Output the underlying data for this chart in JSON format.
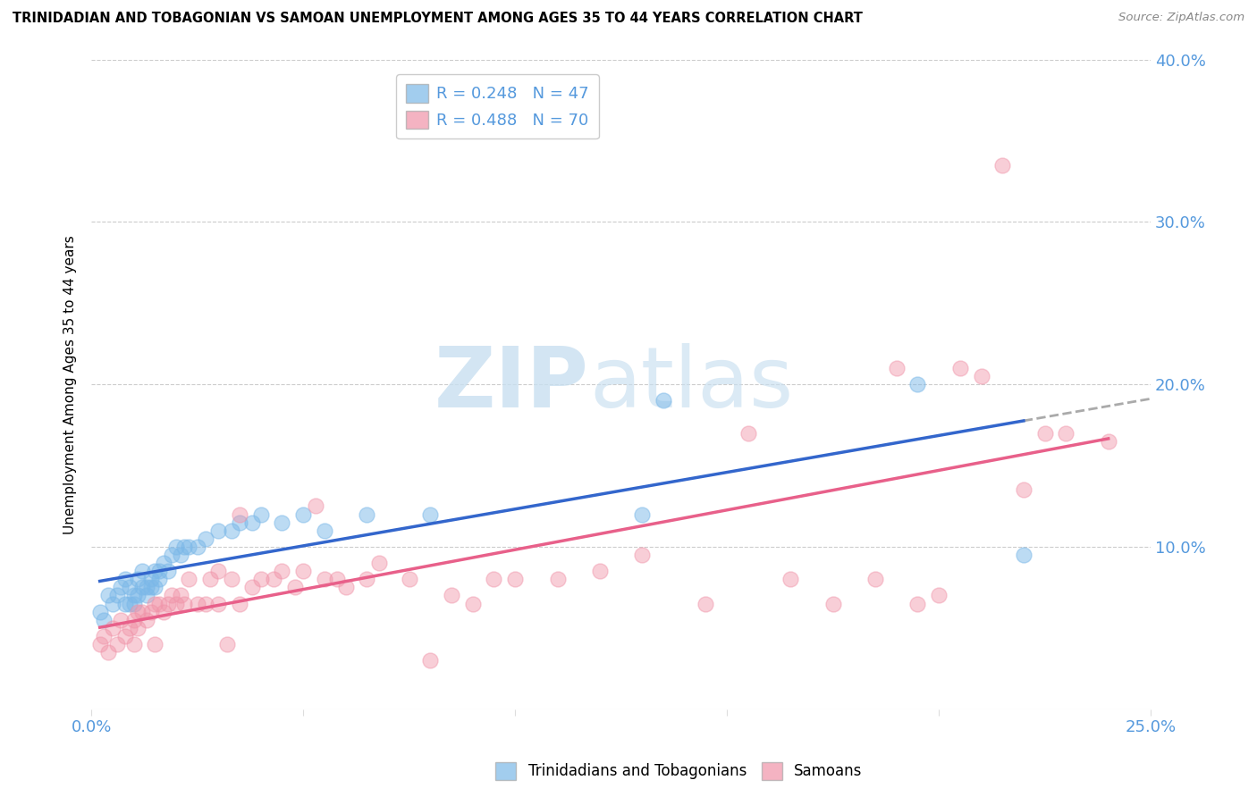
{
  "title": "TRINIDADIAN AND TOBAGONIAN VS SAMOAN UNEMPLOYMENT AMONG AGES 35 TO 44 YEARS CORRELATION CHART",
  "source": "Source: ZipAtlas.com",
  "ylabel": "Unemployment Among Ages 35 to 44 years",
  "xlim": [
    0.0,
    0.25
  ],
  "ylim": [
    0.0,
    0.4
  ],
  "xticks": [
    0.0,
    0.05,
    0.1,
    0.15,
    0.2,
    0.25
  ],
  "yticks": [
    0.0,
    0.1,
    0.2,
    0.3,
    0.4
  ],
  "trinidadian_color": "#7bb8e8",
  "samoan_color": "#f093a8",
  "trinidadian_line_color": "#3366cc",
  "samoan_line_color": "#e8608a",
  "trinidadian_line_color_ext": "#aaaaaa",
  "watermark_zip": "ZIP",
  "watermark_atlas": "atlas",
  "legend_r1": "R = 0.248",
  "legend_n1": "N = 47",
  "legend_r2": "R = 0.488",
  "legend_n2": "N = 70",
  "trinidadian_x": [
    0.002,
    0.003,
    0.004,
    0.005,
    0.006,
    0.007,
    0.008,
    0.008,
    0.009,
    0.009,
    0.01,
    0.01,
    0.011,
    0.011,
    0.012,
    0.012,
    0.013,
    0.013,
    0.014,
    0.014,
    0.015,
    0.015,
    0.016,
    0.016,
    0.017,
    0.018,
    0.019,
    0.02,
    0.021,
    0.022,
    0.023,
    0.025,
    0.027,
    0.03,
    0.033,
    0.035,
    0.038,
    0.04,
    0.045,
    0.05,
    0.055,
    0.065,
    0.08,
    0.13,
    0.135,
    0.195,
    0.22
  ],
  "trinidadian_y": [
    0.06,
    0.055,
    0.07,
    0.065,
    0.07,
    0.075,
    0.065,
    0.08,
    0.065,
    0.075,
    0.07,
    0.065,
    0.08,
    0.07,
    0.075,
    0.085,
    0.075,
    0.07,
    0.08,
    0.075,
    0.085,
    0.075,
    0.085,
    0.08,
    0.09,
    0.085,
    0.095,
    0.1,
    0.095,
    0.1,
    0.1,
    0.1,
    0.105,
    0.11,
    0.11,
    0.115,
    0.115,
    0.12,
    0.115,
    0.12,
    0.11,
    0.12,
    0.12,
    0.12,
    0.19,
    0.2,
    0.095
  ],
  "samoan_x": [
    0.002,
    0.003,
    0.004,
    0.005,
    0.006,
    0.007,
    0.008,
    0.009,
    0.01,
    0.01,
    0.011,
    0.011,
    0.012,
    0.013,
    0.014,
    0.015,
    0.015,
    0.016,
    0.017,
    0.018,
    0.019,
    0.02,
    0.021,
    0.022,
    0.023,
    0.025,
    0.027,
    0.028,
    0.03,
    0.03,
    0.032,
    0.033,
    0.035,
    0.035,
    0.038,
    0.04,
    0.043,
    0.045,
    0.048,
    0.05,
    0.053,
    0.055,
    0.058,
    0.06,
    0.065,
    0.068,
    0.075,
    0.08,
    0.085,
    0.09,
    0.095,
    0.1,
    0.11,
    0.12,
    0.13,
    0.145,
    0.155,
    0.165,
    0.175,
    0.185,
    0.19,
    0.195,
    0.2,
    0.205,
    0.21,
    0.215,
    0.22,
    0.225,
    0.23,
    0.24
  ],
  "samoan_y": [
    0.04,
    0.045,
    0.035,
    0.05,
    0.04,
    0.055,
    0.045,
    0.05,
    0.055,
    0.04,
    0.06,
    0.05,
    0.06,
    0.055,
    0.06,
    0.065,
    0.04,
    0.065,
    0.06,
    0.065,
    0.07,
    0.065,
    0.07,
    0.065,
    0.08,
    0.065,
    0.065,
    0.08,
    0.085,
    0.065,
    0.04,
    0.08,
    0.12,
    0.065,
    0.075,
    0.08,
    0.08,
    0.085,
    0.075,
    0.085,
    0.125,
    0.08,
    0.08,
    0.075,
    0.08,
    0.09,
    0.08,
    0.03,
    0.07,
    0.065,
    0.08,
    0.08,
    0.08,
    0.085,
    0.095,
    0.065,
    0.17,
    0.08,
    0.065,
    0.08,
    0.21,
    0.065,
    0.07,
    0.21,
    0.205,
    0.335,
    0.135,
    0.17,
    0.17,
    0.165
  ]
}
